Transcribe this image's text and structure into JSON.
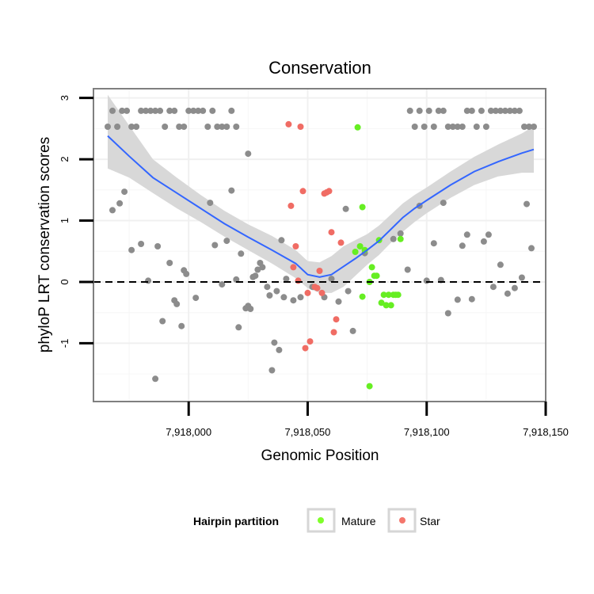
{
  "chart_data": {
    "type": "scatter",
    "title": "Conservation",
    "xlabel": "Genomic Position",
    "ylabel": "phyloP LRT conservation scores",
    "xlim": [
      7917960,
      7918150
    ],
    "ylim": [
      -1.95,
      3.15
    ],
    "x_ticks": [
      7918000,
      7918050,
      7918100,
      7918150
    ],
    "x_tick_labels": [
      "7,918,000",
      "7,918,050",
      "7,918,100",
      "7,918,150"
    ],
    "y_ticks": [
      -1,
      0,
      1,
      2,
      3
    ],
    "y_tick_labels": [
      "-1",
      "0",
      "1",
      "2",
      "3"
    ],
    "reference_line": {
      "y": 0,
      "style": "dashed"
    },
    "legend": {
      "title": "Hairpin partition",
      "position": "bottom",
      "entries": [
        {
          "label": "Mature",
          "color": "#7fff2a"
        },
        {
          "label": "Star",
          "color": "#f4766c"
        }
      ]
    },
    "colors": {
      "other": "#8c8c8c",
      "mature": "#66ee22",
      "star": "#f06c64",
      "smooth": "#3366ff",
      "ribbon": "#d6d6d6"
    },
    "smooth": {
      "x": [
        7917966,
        7917975,
        7917985,
        7917995,
        7918005,
        7918015,
        7918025,
        7918035,
        7918045,
        7918050,
        7918055,
        7918060,
        7918065,
        7918070,
        7918075,
        7918080,
        7918085,
        7918090,
        7918095,
        7918100,
        7918110,
        7918120,
        7918130,
        7918140,
        7918145
      ],
      "y": [
        2.38,
        2.05,
        1.7,
        1.45,
        1.2,
        0.95,
        0.73,
        0.52,
        0.3,
        0.12,
        0.08,
        0.12,
        0.25,
        0.38,
        0.52,
        0.67,
        0.86,
        1.05,
        1.2,
        1.33,
        1.58,
        1.8,
        1.96,
        2.1,
        2.16
      ],
      "lower": [
        1.85,
        1.7,
        1.45,
        1.2,
        0.98,
        0.74,
        0.52,
        0.3,
        0.06,
        -0.1,
        -0.18,
        -0.18,
        -0.08,
        0.1,
        0.28,
        0.44,
        0.64,
        0.82,
        0.98,
        1.12,
        1.37,
        1.58,
        1.72,
        1.78,
        1.78
      ],
      "upper": [
        3.05,
        2.55,
        2.0,
        1.7,
        1.42,
        1.16,
        0.94,
        0.75,
        0.52,
        0.34,
        0.32,
        0.42,
        0.58,
        0.68,
        0.78,
        0.92,
        1.1,
        1.28,
        1.42,
        1.54,
        1.8,
        2.04,
        2.24,
        2.42,
        2.54
      ]
    },
    "series": [
      {
        "name": "Other",
        "points": [
          [
            7917966,
            2.53
          ],
          [
            7917968,
            2.79
          ],
          [
            7917970,
            2.53
          ],
          [
            7917972,
            2.79
          ],
          [
            7917974,
            2.79
          ],
          [
            7917976,
            2.53
          ],
          [
            7917978,
            2.53
          ],
          [
            7917980,
            2.79
          ],
          [
            7917982,
            2.79
          ],
          [
            7917984,
            2.79
          ],
          [
            7917986,
            2.79
          ],
          [
            7917988,
            2.79
          ],
          [
            7917990,
            2.53
          ],
          [
            7917992,
            2.79
          ],
          [
            7917994,
            2.79
          ],
          [
            7917996,
            2.53
          ],
          [
            7917998,
            2.53
          ],
          [
            7918000,
            2.79
          ],
          [
            7918002,
            2.79
          ],
          [
            7918004,
            2.79
          ],
          [
            7918006,
            2.79
          ],
          [
            7918008,
            2.53
          ],
          [
            7918010,
            2.79
          ],
          [
            7918012,
            2.53
          ],
          [
            7918014,
            2.53
          ],
          [
            7918016,
            2.53
          ],
          [
            7918018,
            2.79
          ],
          [
            7918020,
            2.53
          ],
          [
            7918093,
            2.79
          ],
          [
            7918095,
            2.53
          ],
          [
            7918097,
            2.79
          ],
          [
            7918099,
            2.53
          ],
          [
            7918101,
            2.79
          ],
          [
            7918103,
            2.53
          ],
          [
            7918105,
            2.79
          ],
          [
            7918107,
            2.79
          ],
          [
            7918109,
            2.53
          ],
          [
            7918111,
            2.53
          ],
          [
            7918113,
            2.53
          ],
          [
            7918115,
            2.53
          ],
          [
            7918117,
            2.79
          ],
          [
            7918119,
            2.79
          ],
          [
            7918121,
            2.53
          ],
          [
            7918123,
            2.79
          ],
          [
            7918125,
            2.53
          ],
          [
            7918127,
            2.79
          ],
          [
            7918129,
            2.79
          ],
          [
            7918131,
            2.79
          ],
          [
            7918133,
            2.79
          ],
          [
            7918135,
            2.79
          ],
          [
            7918137,
            2.79
          ],
          [
            7918139,
            2.79
          ],
          [
            7918141,
            2.53
          ],
          [
            7918143,
            2.53
          ],
          [
            7918145,
            2.53
          ],
          [
            7918025,
            2.09
          ],
          [
            7918018,
            1.49
          ],
          [
            7918009,
            1.29
          ],
          [
            7917968,
            1.17
          ],
          [
            7917971,
            1.28
          ],
          [
            7917973,
            1.47
          ],
          [
            7917976,
            0.52
          ],
          [
            7917980,
            0.62
          ],
          [
            7917983,
            0.02
          ],
          [
            7917986,
            -1.58
          ],
          [
            7917987,
            0.58
          ],
          [
            7917989,
            -0.64
          ],
          [
            7917992,
            0.31
          ],
          [
            7917994,
            -0.3
          ],
          [
            7917995,
            -0.36
          ],
          [
            7917997,
            -0.72
          ],
          [
            7917998,
            0.19
          ],
          [
            7917999,
            0.13
          ],
          [
            7918003,
            -0.26
          ],
          [
            7918011,
            0.6
          ],
          [
            7918014,
            -0.04
          ],
          [
            7918016,
            0.67
          ],
          [
            7918020,
            0.04
          ],
          [
            7918021,
            -0.74
          ],
          [
            7918022,
            0.46
          ],
          [
            7918024,
            -0.43
          ],
          [
            7918025,
            -0.39
          ],
          [
            7918026,
            -0.44
          ],
          [
            7918027,
            0.08
          ],
          [
            7918028,
            0.1
          ],
          [
            7918029,
            0.2
          ],
          [
            7918030,
            0.31
          ],
          [
            7918031,
            0.24
          ],
          [
            7918033,
            -0.08
          ],
          [
            7918034,
            -0.22
          ],
          [
            7918035,
            -1.44
          ],
          [
            7918036,
            -0.99
          ],
          [
            7918037,
            -0.15
          ],
          [
            7918038,
            -1.11
          ],
          [
            7918039,
            0.68
          ],
          [
            7918040,
            -0.25
          ],
          [
            7918041,
            0.05
          ],
          [
            7918044,
            -0.3
          ],
          [
            7918047,
            -0.25
          ],
          [
            7918052,
            -0.08
          ],
          [
            7918057,
            -0.25
          ],
          [
            7918060,
            0.05
          ],
          [
            7918063,
            -0.32
          ],
          [
            7918066,
            1.19
          ],
          [
            7918067,
            -0.15
          ],
          [
            7918069,
            -0.8
          ],
          [
            7918074,
            0.47
          ],
          [
            7918086,
            0.7
          ],
          [
            7918089,
            0.79
          ],
          [
            7918092,
            0.2
          ],
          [
            7918097,
            1.24
          ],
          [
            7918100,
            0.02
          ],
          [
            7918103,
            0.63
          ],
          [
            7918106,
            0.03
          ],
          [
            7918107,
            1.29
          ],
          [
            7918109,
            -0.51
          ],
          [
            7918113,
            -0.29
          ],
          [
            7918115,
            0.59
          ],
          [
            7918117,
            0.77
          ],
          [
            7918119,
            -0.28
          ],
          [
            7918124,
            0.66
          ],
          [
            7918126,
            0.77
          ],
          [
            7918128,
            -0.08
          ],
          [
            7918131,
            0.28
          ],
          [
            7918134,
            -0.19
          ],
          [
            7918137,
            -0.1
          ],
          [
            7918140,
            0.07
          ],
          [
            7918142,
            1.27
          ],
          [
            7918144,
            0.55
          ]
        ]
      },
      {
        "name": "Mature",
        "points": [
          [
            7918071,
            2.52
          ],
          [
            7918073,
            1.22
          ],
          [
            7918070,
            0.49
          ],
          [
            7918072,
            0.58
          ],
          [
            7918074,
            0.52
          ],
          [
            7918073,
            -0.24
          ],
          [
            7918076,
            0.0
          ],
          [
            7918077,
            0.24
          ],
          [
            7918078,
            0.1
          ],
          [
            7918079,
            0.1
          ],
          [
            7918076,
            -1.7
          ],
          [
            7918080,
            0.68
          ],
          [
            7918081,
            -0.34
          ],
          [
            7918082,
            -0.21
          ],
          [
            7918083,
            -0.38
          ],
          [
            7918084,
            -0.21
          ],
          [
            7918085,
            -0.38
          ],
          [
            7918086,
            -0.21
          ],
          [
            7918087,
            -0.21
          ],
          [
            7918088,
            -0.21
          ],
          [
            7918089,
            0.7
          ]
        ]
      },
      {
        "name": "Star",
        "points": [
          [
            7918042,
            2.57
          ],
          [
            7918047,
            2.53
          ],
          [
            7918043,
            1.24
          ],
          [
            7918048,
            1.48
          ],
          [
            7918045,
            0.58
          ],
          [
            7918044,
            0.24
          ],
          [
            7918046,
            0.02
          ],
          [
            7918050,
            -0.18
          ],
          [
            7918049,
            -1.08
          ],
          [
            7918051,
            -0.97
          ],
          [
            7918053,
            -0.08
          ],
          [
            7918054,
            -0.1
          ],
          [
            7918056,
            -0.18
          ],
          [
            7918057,
            1.44
          ],
          [
            7918058,
            1.46
          ],
          [
            7918059,
            1.48
          ],
          [
            7918060,
            0.81
          ],
          [
            7918061,
            -0.82
          ],
          [
            7918062,
            -0.61
          ],
          [
            7918064,
            0.64
          ],
          [
            7918055,
            0.18
          ]
        ]
      }
    ]
  }
}
